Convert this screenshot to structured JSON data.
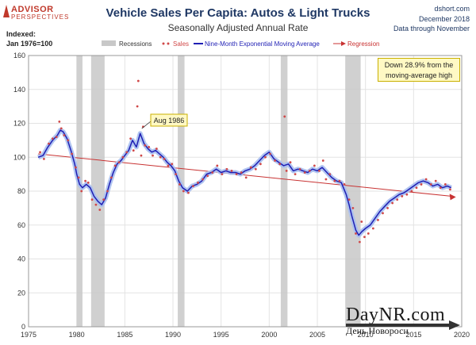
{
  "header": {
    "logo_line1": "ADVISOR",
    "logo_line2": "PERSPECTIVES",
    "title": "Vehicle Sales Per Capita: Autos & Light Trucks",
    "subtitle": "Seasonally Adjusted Annual Rate",
    "source": "dshort.com",
    "date": "December 2018",
    "data_through": "Data through November",
    "index_label_1": "Indexed:",
    "index_label_2": "Jan 1976=100"
  },
  "callout": {
    "line1": "Down 28.9% from the",
    "line2": "moving-average high"
  },
  "watermark": {
    "main": "DayNR.com",
    "sub": "День Новороси"
  },
  "colors": {
    "ma_line": "#1f1fb4",
    "ma_halo": "#a9bff0",
    "sales_dots": "#d04848",
    "regression": "#c83232",
    "recession": "#c8c8c8"
  },
  "chart_data": {
    "type": "line",
    "title": "Vehicle Sales Per Capita: Autos & Light Trucks",
    "subtitle": "Seasonally Adjusted Annual Rate",
    "xlim": [
      1975,
      2020
    ],
    "ylim": [
      0,
      160
    ],
    "x_ticks": [
      "1975",
      "1980",
      "1985",
      "1990",
      "1995",
      "2000",
      "2005",
      "2010",
      "2015",
      "2020"
    ],
    "y_ticks": [
      "0",
      "20",
      "40",
      "60",
      "80",
      "100",
      "120",
      "140",
      "160"
    ],
    "grid": true,
    "legend": [
      "Recessions",
      "Sales",
      "Nine-Month Exponential Moving Average",
      "Regression"
    ],
    "legend_position": "top",
    "recessions": [
      [
        1980.0,
        1980.6
      ],
      [
        1981.5,
        1982.9
      ],
      [
        1990.5,
        1991.2
      ],
      [
        2001.2,
        2001.9
      ],
      [
        2007.9,
        2009.5
      ]
    ],
    "annotation": {
      "label": "Aug 1986",
      "x": 1986.6,
      "y": 116
    },
    "regression": {
      "x": [
        1976.0,
        2018.9
      ],
      "y": [
        102,
        77
      ]
    },
    "moving_average": {
      "name": "Nine-Month Exponential Moving Average",
      "x": [
        1976.0,
        1976.5,
        1977.0,
        1977.5,
        1978.0,
        1978.3,
        1978.6,
        1979.0,
        1979.4,
        1979.8,
        1980.0,
        1980.3,
        1980.6,
        1981.0,
        1981.4,
        1981.8,
        1982.2,
        1982.6,
        1983.0,
        1983.4,
        1983.8,
        1984.2,
        1984.6,
        1985.0,
        1985.4,
        1985.8,
        1986.2,
        1986.6,
        1987.0,
        1987.4,
        1987.8,
        1988.2,
        1988.6,
        1989.0,
        1989.4,
        1989.8,
        1990.2,
        1990.6,
        1991.0,
        1991.5,
        1992.0,
        1992.5,
        1993.0,
        1993.5,
        1994.0,
        1994.5,
        1995.0,
        1995.5,
        1996.0,
        1996.5,
        1997.0,
        1997.5,
        1998.0,
        1998.5,
        1999.0,
        1999.5,
        2000.0,
        2000.5,
        2001.0,
        2001.5,
        2002.0,
        2002.5,
        2003.0,
        2003.5,
        2004.0,
        2004.5,
        2005.0,
        2005.5,
        2006.0,
        2006.5,
        2007.0,
        2007.5,
        2008.0,
        2008.3,
        2008.6,
        2009.0,
        2009.3,
        2009.6,
        2010.0,
        2010.5,
        2011.0,
        2011.5,
        2012.0,
        2012.5,
        2013.0,
        2013.5,
        2014.0,
        2014.5,
        2015.0,
        2015.5,
        2016.0,
        2016.5,
        2017.0,
        2017.5,
        2018.0,
        2018.5,
        2018.9
      ],
      "y": [
        100,
        101,
        106,
        110,
        113,
        116,
        115,
        111,
        104,
        96,
        90,
        84,
        82,
        84,
        82,
        77,
        74,
        72,
        76,
        84,
        91,
        96,
        98,
        101,
        104,
        110,
        106,
        114,
        108,
        105,
        103,
        104,
        102,
        100,
        97,
        95,
        92,
        86,
        82,
        80,
        83,
        84,
        86,
        90,
        91,
        93,
        91,
        92,
        91,
        91,
        90,
        92,
        93,
        95,
        98,
        101,
        103,
        99,
        97,
        95,
        96,
        92,
        93,
        92,
        91,
        93,
        92,
        94,
        91,
        88,
        86,
        85,
        78,
        72,
        65,
        57,
        54,
        56,
        58,
        60,
        64,
        68,
        71,
        74,
        76,
        78,
        79,
        81,
        83,
        85,
        86,
        85,
        83,
        84,
        82,
        83,
        82
      ]
    },
    "sales_points": {
      "name": "Sales",
      "x": [
        1976.2,
        1976.6,
        1977.1,
        1977.5,
        1977.9,
        1978.2,
        1978.4,
        1978.7,
        1979.1,
        1979.5,
        1979.9,
        1980.2,
        1980.5,
        1980.9,
        1981.2,
        1981.6,
        1982.0,
        1982.4,
        1982.8,
        1983.2,
        1983.6,
        1984.0,
        1984.4,
        1984.8,
        1985.2,
        1985.6,
        1985.9,
        1986.3,
        1986.4,
        1986.7,
        1986.9,
        1987.1,
        1987.5,
        1987.9,
        1988.3,
        1988.7,
        1989.1,
        1989.5,
        1989.9,
        1990.3,
        1990.7,
        1991.1,
        1991.6,
        1992.1,
        1992.6,
        1993.1,
        1993.6,
        1994.1,
        1994.6,
        1995.1,
        1995.6,
        1996.1,
        1996.6,
        1997.1,
        1997.6,
        1998.1,
        1998.6,
        1999.1,
        1999.6,
        2000.1,
        2000.6,
        2001.1,
        2001.6,
        2001.8,
        2002.2,
        2002.7,
        2003.2,
        2003.7,
        2004.2,
        2004.7,
        2005.2,
        2005.6,
        2005.9,
        2006.3,
        2006.8,
        2007.3,
        2007.8,
        2008.3,
        2008.7,
        2009.0,
        2009.4,
        2009.6,
        2009.9,
        2010.3,
        2010.8,
        2011.3,
        2011.8,
        2012.3,
        2012.8,
        2013.3,
        2013.8,
        2014.3,
        2014.8,
        2015.3,
        2015.8,
        2016.3,
        2016.8,
        2017.3,
        2017.8,
        2018.3,
        2018.8
      ],
      "y": [
        103,
        99,
        108,
        111,
        112,
        121,
        117,
        113,
        110,
        102,
        94,
        88,
        80,
        86,
        85,
        75,
        72,
        69,
        75,
        80,
        88,
        95,
        97,
        100,
        103,
        111,
        104,
        130,
        145,
        101,
        118,
        107,
        106,
        101,
        105,
        100,
        99,
        95,
        96,
        90,
        84,
        80,
        79,
        83,
        85,
        87,
        89,
        91,
        95,
        90,
        93,
        92,
        90,
        91,
        88,
        94,
        93,
        96,
        100,
        102,
        98,
        96,
        124,
        92,
        97,
        90,
        93,
        91,
        92,
        95,
        92,
        98,
        87,
        90,
        86,
        86,
        84,
        75,
        70,
        55,
        50,
        62,
        53,
        55,
        58,
        63,
        67,
        70,
        73,
        75,
        77,
        78,
        80,
        82,
        84,
        87,
        84,
        86,
        82,
        84,
        81
      ]
    }
  }
}
